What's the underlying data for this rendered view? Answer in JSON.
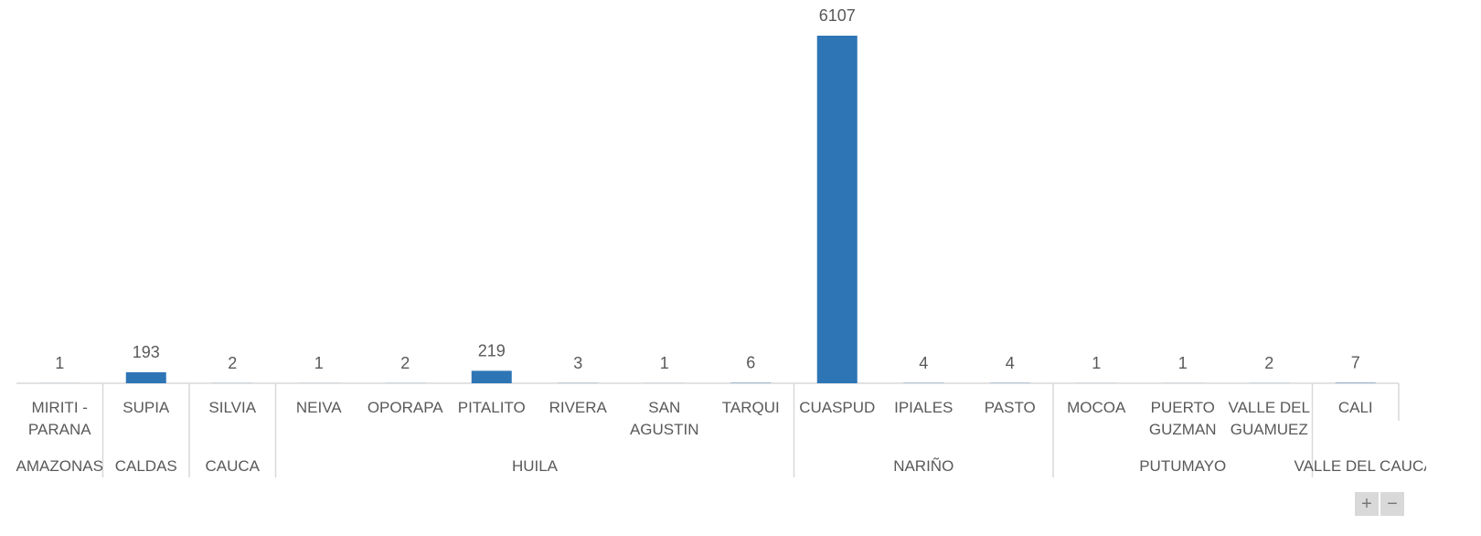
{
  "chart_data": {
    "type": "bar",
    "color": "#2e75b6",
    "groups": [
      {
        "name": "AMAZONAS",
        "categories": [
          "MIRITI - PARANA"
        ],
        "values": [
          1
        ]
      },
      {
        "name": "CALDAS",
        "categories": [
          "SUPIA"
        ],
        "values": [
          193
        ]
      },
      {
        "name": "CAUCA",
        "categories": [
          "SILVIA"
        ],
        "values": [
          2
        ]
      },
      {
        "name": "HUILA",
        "categories": [
          "NEIVA",
          "OPORAPA",
          "PITALITO",
          "RIVERA",
          "SAN AGUSTIN",
          "TARQUI"
        ],
        "values": [
          1,
          2,
          219,
          3,
          1,
          6
        ]
      },
      {
        "name": "NARIÑO",
        "categories": [
          "CUASPUD",
          "IPIALES",
          "PASTO"
        ],
        "values": [
          6107,
          4,
          4
        ]
      },
      {
        "name": "PUTUMAYO",
        "categories": [
          "MOCOA",
          "PUERTO GUZMAN",
          "VALLE DEL GUAMUEZ"
        ],
        "values": [
          1,
          1,
          2
        ]
      },
      {
        "name": "VALLE DEL CAUCA",
        "categories": [
          "CALI"
        ],
        "values": [
          7
        ]
      }
    ]
  }
}
